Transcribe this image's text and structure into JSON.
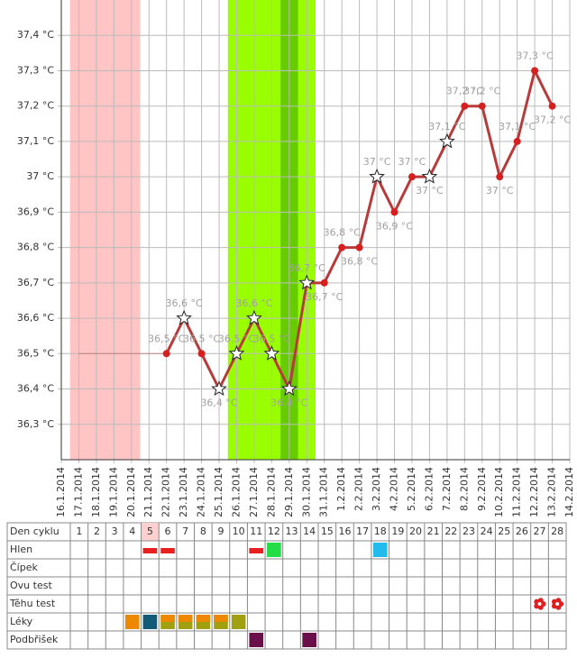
{
  "chart_data": {
    "type": "line",
    "categories": [
      "16.1.2014",
      "17.1.2014",
      "18.1.2014",
      "19.1.2014",
      "20.1.2014",
      "21.1.2014",
      "22.1.2014",
      "23.1.2014",
      "24.1.2014",
      "25.1.2014",
      "26.1.2014",
      "27.1.2014",
      "28.1.2014",
      "29.1.2014",
      "30.1.2014",
      "31.1.2014",
      "1.2.2014",
      "2.2.2014",
      "3.2.2014",
      "4.2.2014",
      "5.2.2014",
      "6.2.2014",
      "7.2.2014",
      "8.2.2014",
      "9.2.2014",
      "10.2.2014",
      "11.2.2014",
      "12.2.2014",
      "13.2.2014",
      "14.2.2014"
    ],
    "series": [
      {
        "color": "#b83a3a",
        "values": [
          null,
          null,
          null,
          null,
          null,
          null,
          36.5,
          36.6,
          36.5,
          36.4,
          36.5,
          36.6,
          36.5,
          36.4,
          36.7,
          36.7,
          36.8,
          36.8,
          37.0,
          36.9,
          37.0,
          37.0,
          37.1,
          37.2,
          37.2,
          37.0,
          37.1,
          37.3,
          37.2,
          null
        ],
        "value_labels": [
          null,
          null,
          null,
          null,
          null,
          null,
          "36,5 °C",
          "36,6 °C",
          "36,5 °C",
          "36,4 °C",
          "36,5 °C",
          "36,6 °C",
          "36,5 °C",
          "36,4 °C",
          "36,7 °C",
          "36,7 °C",
          "36,8 °C",
          "36,8 °C",
          "37 °C",
          "36,9 °C",
          "37 °C",
          "37 °C",
          "37,1 °C",
          "37,2 °C",
          "37,2 °C",
          "37 °C",
          "37,1 °C",
          "37,3 °C",
          "37,2 °C",
          null
        ],
        "markers": [
          null,
          null,
          null,
          null,
          null,
          null,
          "dot",
          "star",
          "dot",
          "star",
          "star",
          "star",
          "star",
          "star",
          "star",
          "dot",
          "dot",
          "dot",
          "star",
          "dot",
          "dot",
          "star",
          "star",
          "dot",
          "dot",
          "dot",
          "dot",
          "dot",
          "dot",
          null
        ]
      }
    ],
    "ylim": [
      36.2,
      37.5
    ],
    "yticks": [
      {
        "value": 36.3,
        "label": "36,3 °C"
      },
      {
        "value": 36.4,
        "label": "36,4 °C"
      },
      {
        "value": 36.5,
        "label": "36,5 °C"
      },
      {
        "value": 36.6,
        "label": "36,6 °C"
      },
      {
        "value": 36.7,
        "label": "36,7 °C"
      },
      {
        "value": 36.8,
        "label": "36,8 °C"
      },
      {
        "value": 36.9,
        "label": "36,9 °C"
      },
      {
        "value": 37.0,
        "label": "37 °C"
      },
      {
        "value": 37.1,
        "label": "37,1 °C"
      },
      {
        "value": 37.2,
        "label": "37,2 °C"
      },
      {
        "value": 37.3,
        "label": "37,3 °C"
      },
      {
        "value": 37.4,
        "label": "37,4 °C"
      }
    ],
    "grid": true,
    "bands": [
      {
        "from": "17.1.2014",
        "to": "20.1.2014",
        "color": "#ffc4c4"
      },
      {
        "from": "26.1.2014",
        "to": "30.1.2014",
        "color": "#99ff00"
      },
      {
        "from": "29.1.2014",
        "to": "29.1.2014",
        "color": "#66cc00"
      }
    ],
    "coverline": {
      "value": 36.5,
      "from": "17.1.2014",
      "to": "22.1.2014",
      "color": "#c04040"
    }
  },
  "cycle_table": {
    "header": "Den cyklu",
    "days": [
      1,
      2,
      3,
      4,
      5,
      6,
      7,
      8,
      9,
      10,
      11,
      12,
      13,
      14,
      15,
      16,
      17,
      18,
      19,
      20,
      21,
      22,
      23,
      24,
      25,
      26,
      27,
      28
    ],
    "highlight_day": 5,
    "rows": [
      {
        "label": "Hlen",
        "marks": [
          {
            "day": 5,
            "shape": "bar",
            "color": "#e82020"
          },
          {
            "day": 6,
            "shape": "bar",
            "color": "#e82020"
          },
          {
            "day": 11,
            "shape": "bar",
            "color": "#e82020"
          },
          {
            "day": 12,
            "shape": "square",
            "color": "#22dd44"
          },
          {
            "day": 18,
            "shape": "square",
            "color": "#22bbee"
          }
        ]
      },
      {
        "label": "Čípek",
        "marks": []
      },
      {
        "label": "Ovu test",
        "marks": []
      },
      {
        "label": "Těhu test",
        "marks": [
          {
            "day": 27,
            "shape": "flower",
            "color": "#e02020"
          },
          {
            "day": 28,
            "shape": "flower",
            "color": "#e02020"
          }
        ]
      },
      {
        "label": "Léky",
        "marks": [
          {
            "day": 4,
            "shape": "square",
            "color": "#ee8800"
          },
          {
            "day": 5,
            "shape": "square",
            "color": "#115a78"
          },
          {
            "day": 6,
            "shape": "split",
            "color": "#ee8800"
          },
          {
            "day": 7,
            "shape": "split",
            "color": "#ee8800"
          },
          {
            "day": 8,
            "shape": "split",
            "color": "#ee8800"
          },
          {
            "day": 9,
            "shape": "split",
            "color": "#ee8800"
          },
          {
            "day": 10,
            "shape": "square",
            "color": "#a0a010"
          }
        ]
      },
      {
        "label": "Podbřišek",
        "marks": [
          {
            "day": 11,
            "shape": "square",
            "color": "#6a0f4a"
          },
          {
            "day": 14,
            "shape": "square",
            "color": "#6a0f4a"
          }
        ]
      }
    ]
  }
}
